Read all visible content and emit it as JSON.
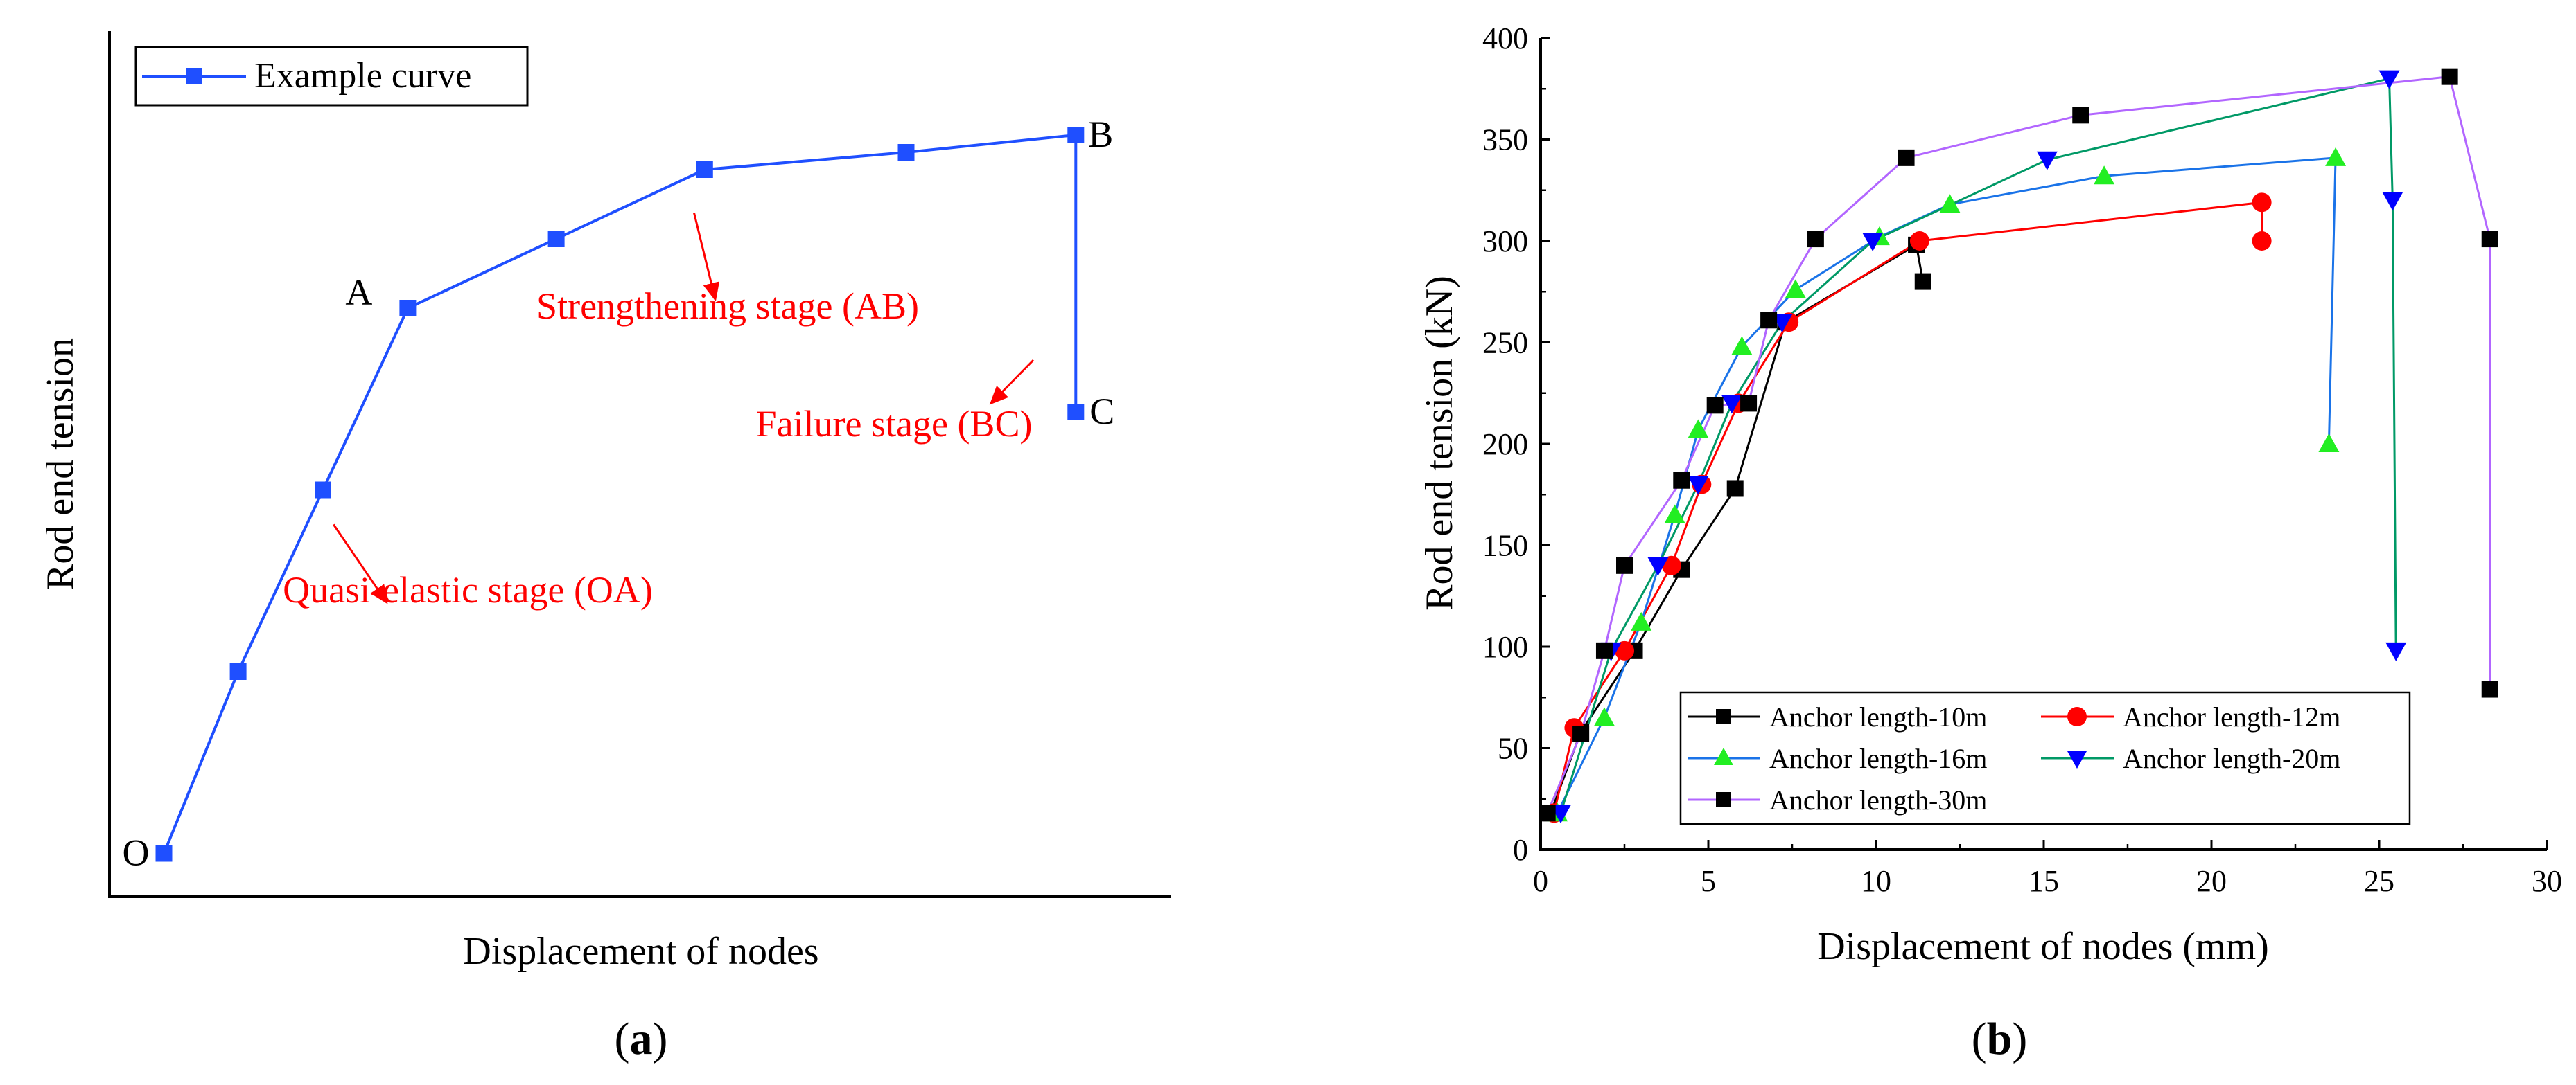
{
  "chart_data": [
    {
      "type": "line",
      "panel_label": "(a)",
      "panel_label_parts": [
        "(",
        "a",
        ")"
      ],
      "xlabel": "Displacement of nodes",
      "ylabel": "Rod end tension",
      "legend": [
        "Example curve"
      ],
      "xlim": [
        0,
        100
      ],
      "ylim": [
        0,
        100
      ],
      "series": [
        {
          "name": "Example curve",
          "color": "#1f4fff",
          "marker": "square",
          "x": [
            5,
            12,
            20,
            28,
            42,
            56,
            75,
            91,
            91
          ],
          "y": [
            5,
            26,
            47,
            68,
            76,
            84,
            86,
            88,
            56
          ]
        }
      ],
      "point_labels": [
        {
          "text": "O",
          "x": 5,
          "y": 5
        },
        {
          "text": "A",
          "x": 28,
          "y": 68
        },
        {
          "text": "B",
          "x": 91,
          "y": 88
        },
        {
          "text": "C",
          "x": 91,
          "y": 56
        }
      ],
      "annotations": [
        {
          "text": "Quasi-elastic stage (OA)",
          "arrow_from": [
            21,
            43
          ],
          "arrow_to": [
            26,
            34
          ]
        },
        {
          "text": "Strengthening stage (AB)",
          "arrow_from": [
            55,
            79
          ],
          "arrow_to": [
            57,
            69
          ]
        },
        {
          "text": "Failure stage (BC)",
          "arrow_from": [
            87,
            62
          ],
          "arrow_to": [
            83,
            57
          ]
        }
      ],
      "annotation_color": "#ff0000"
    },
    {
      "type": "line",
      "panel_label": "(b)",
      "panel_label_parts": [
        "(",
        "b",
        ")"
      ],
      "xlabel": "Displacement of nodes (mm)",
      "ylabel": "Rod end tension (kN)",
      "xlim": [
        0,
        30
      ],
      "ylim": [
        0,
        400
      ],
      "xticks": [
        0,
        5,
        10,
        15,
        20,
        25,
        30
      ],
      "yticks": [
        0,
        50,
        100,
        150,
        200,
        250,
        300,
        350,
        400
      ],
      "legend_placement": "bottom-right",
      "series": [
        {
          "name": "Anchor length-10m",
          "line_color": "#000000",
          "marker_color": "#000000",
          "marker": "square",
          "x": [
            0.3,
            1.2,
            2.8,
            4.2,
            5.8,
            7.3,
            11.2,
            11.4
          ],
          "y": [
            18,
            58,
            98,
            138,
            178,
            260,
            298,
            280
          ]
        },
        {
          "name": "Anchor length-12m",
          "line_color": "#ff0000",
          "marker_color": "#ff0000",
          "marker": "circle",
          "x": [
            0.4,
            1.0,
            2.5,
            3.9,
            4.8,
            5.9,
            7.4,
            11.3,
            21.5,
            21.5
          ],
          "y": [
            18,
            60,
            98,
            140,
            180,
            220,
            260,
            300,
            319,
            300
          ]
        },
        {
          "name": "Anchor length-16m",
          "line_color": "#1a73e8",
          "marker_color": "#22ee22",
          "marker": "triangle-up",
          "x": [
            0.5,
            1.9,
            3.0,
            4.0,
            4.7,
            6.0,
            7.6,
            10.1,
            12.2,
            16.8,
            23.7,
            23.5
          ],
          "y": [
            18,
            65,
            112,
            165,
            207,
            248,
            276,
            302,
            318,
            332,
            341,
            200
          ]
        },
        {
          "name": "Anchor length-20m",
          "line_color": "#009966",
          "marker_color": "#0000ff",
          "marker": "triangle-down",
          "x": [
            0.6,
            2.1,
            3.5,
            4.7,
            5.7,
            7.2,
            9.9,
            15.1,
            25.3,
            25.4,
            25.5
          ],
          "y": [
            18,
            98,
            140,
            180,
            220,
            260,
            300,
            340,
            380,
            320,
            98
          ]
        },
        {
          "name": "Anchor length-30m",
          "line_color": "#b266ff",
          "marker_color": "#000000",
          "marker": "square",
          "x": [
            0.2,
            1.2,
            1.9,
            2.5,
            4.2,
            5.2,
            6.2,
            6.8,
            8.2,
            10.9,
            16.1,
            27.1,
            28.3,
            28.3
          ],
          "y": [
            18,
            57,
            98,
            140,
            182,
            219,
            220,
            261,
            301,
            341,
            362,
            381,
            301,
            79
          ]
        }
      ]
    }
  ]
}
